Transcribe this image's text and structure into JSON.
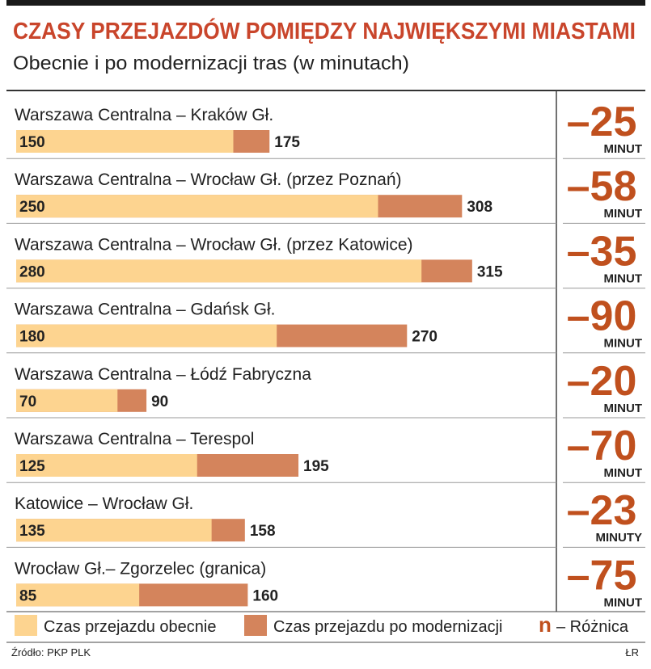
{
  "chart_data": {
    "type": "overlay-bar",
    "title": "CZASY PRZEJAZDÓW POMIĘDZY NAJWIĘKSZYMI MIASTAMI",
    "subtitle": "Obecnie i po modernizacji tras (w minutach)",
    "categories": [
      "Warszawa Centralna – Kraków Gł.",
      "Warszawa Centralna – Wrocław Gł. (przez Poznań)",
      "Warszawa Centralna – Wrocław Gł. (przez Katowice)",
      "Warszawa Centralna – Gdańsk Gł.",
      "Warszawa Centralna – Łódź Fabryczna",
      "Warszawa Centralna – Terespol",
      "Katowice – Wrocław Gł.",
      "Wrocław Gł.– Zgorzelec (granica)"
    ],
    "series": [
      {
        "name": "Czas przejazdu obecnie",
        "color": "#fdd490",
        "values": [
          150,
          250,
          280,
          180,
          70,
          125,
          135,
          85
        ]
      },
      {
        "name": "Czas przejazdu po modernizacji",
        "color": "#d4845c",
        "values": [
          175,
          308,
          315,
          270,
          90,
          195,
          158,
          160
        ]
      }
    ],
    "differences": {
      "color": "#c0501e",
      "values": [
        -25,
        -58,
        -35,
        -90,
        -20,
        -70,
        -23,
        -75
      ],
      "value_labels": [
        "–25",
        "–58",
        "–35",
        "–90",
        "–20",
        "–70",
        "–23",
        "–75"
      ],
      "units": [
        "MINUT",
        "MINUT",
        "MINUT",
        "MINUT",
        "MINUT",
        "MINUT",
        "MINUTY",
        "MINUT"
      ]
    },
    "difference_legend_symbol": "n",
    "difference_legend": "– Różnica",
    "source": "Źródło: PKP PLK",
    "credit": "ŁR"
  }
}
